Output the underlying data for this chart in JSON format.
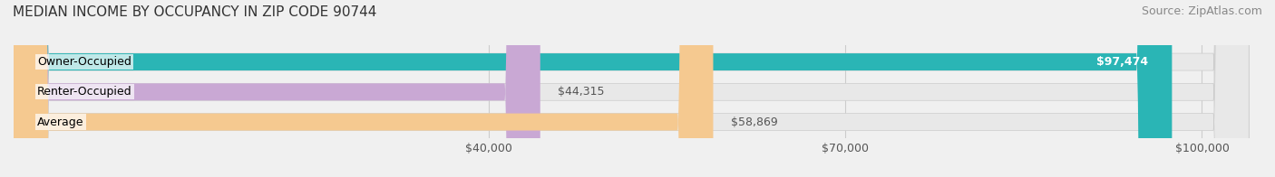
{
  "title": "MEDIAN INCOME BY OCCUPANCY IN ZIP CODE 90744",
  "source": "Source: ZipAtlas.com",
  "categories": [
    "Owner-Occupied",
    "Renter-Occupied",
    "Average"
  ],
  "values": [
    97474,
    44315,
    58869
  ],
  "bar_colors": [
    "#2ab5b5",
    "#c9a8d4",
    "#f5c990"
  ],
  "bar_edge_colors": [
    "#2ab5b5",
    "#c9a8d4",
    "#f5c990"
  ],
  "value_labels": [
    "$97,474",
    "$44,315",
    "$58,869"
  ],
  "x_ticks": [
    40000,
    70000,
    100000
  ],
  "x_tick_labels": [
    "$40,000",
    "$70,000",
    "$100,000"
  ],
  "xlim": [
    0,
    105000
  ],
  "background_color": "#f0f0f0",
  "bar_bg_color": "#e8e8e8",
  "title_fontsize": 11,
  "source_fontsize": 9,
  "label_fontsize": 9,
  "value_fontsize": 9,
  "tick_fontsize": 9
}
